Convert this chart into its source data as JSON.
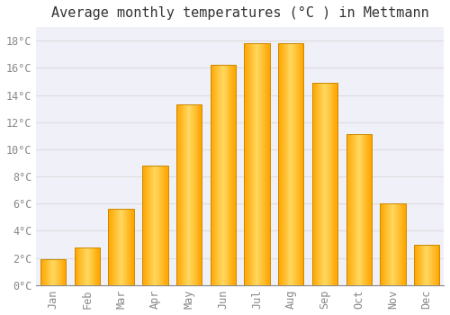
{
  "title": "Average monthly temperatures (°C ) in Mettmann",
  "months": [
    "Jan",
    "Feb",
    "Mar",
    "Apr",
    "May",
    "Jun",
    "Jul",
    "Aug",
    "Sep",
    "Oct",
    "Nov",
    "Dec"
  ],
  "values": [
    1.9,
    2.8,
    5.6,
    8.8,
    13.3,
    16.2,
    17.8,
    17.8,
    14.9,
    11.1,
    6.0,
    3.0
  ],
  "bar_color_left": "#FFA500",
  "bar_color_center": "#FFD060",
  "bar_color_right": "#FFA500",
  "bar_edge_color": "#CC8800",
  "background_color": "#FFFFFF",
  "plot_bg_color": "#F0F0F8",
  "grid_color": "#DDDDDD",
  "ylim": [
    0,
    19
  ],
  "yticks": [
    0,
    2,
    4,
    6,
    8,
    10,
    12,
    14,
    16,
    18
  ],
  "ylabel_suffix": "°C",
  "title_fontsize": 11,
  "tick_fontsize": 8.5,
  "tick_color": "#888888",
  "title_color": "#333333",
  "axis_label_font": "monospace",
  "bar_width": 0.75
}
